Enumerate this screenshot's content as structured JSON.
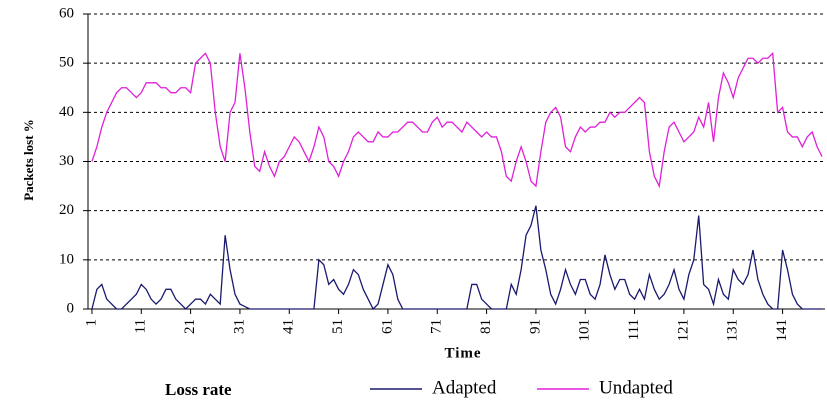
{
  "chart_data": {
    "type": "line",
    "y_label": "Packets lost %",
    "x_label": "Time",
    "legend_title": "Loss rate",
    "x": [
      1,
      2,
      3,
      4,
      5,
      6,
      7,
      8,
      9,
      10,
      11,
      12,
      13,
      14,
      15,
      16,
      17,
      18,
      19,
      20,
      21,
      22,
      23,
      24,
      25,
      26,
      27,
      28,
      29,
      30,
      31,
      32,
      33,
      34,
      35,
      36,
      37,
      38,
      39,
      40,
      41,
      42,
      43,
      44,
      45,
      46,
      47,
      48,
      49,
      50,
      51,
      52,
      53,
      54,
      55,
      56,
      57,
      58,
      59,
      60,
      61,
      62,
      63,
      64,
      65,
      66,
      67,
      68,
      69,
      70,
      71,
      72,
      73,
      74,
      75,
      76,
      77,
      78,
      79,
      80,
      81,
      82,
      83,
      84,
      85,
      86,
      87,
      88,
      89,
      90,
      91,
      92,
      93,
      94,
      95,
      96,
      97,
      98,
      99,
      100,
      101,
      102,
      103,
      104,
      105,
      106,
      107,
      108,
      109,
      110,
      111,
      112,
      113,
      114,
      115,
      116,
      117,
      118,
      119,
      120,
      121,
      122,
      123,
      124,
      125,
      126,
      127,
      128,
      129,
      130,
      131,
      132,
      133,
      134,
      135,
      136,
      137,
      138,
      139,
      140,
      141,
      142,
      143,
      144,
      145,
      146,
      147,
      148,
      149
    ],
    "series": [
      {
        "name": "Adapted",
        "color": "#1a1a6e",
        "values": [
          0,
          4,
          5,
          2,
          1,
          0,
          0,
          1,
          2,
          3,
          5,
          4,
          2,
          1,
          2,
          4,
          4,
          2,
          1,
          0,
          1,
          2,
          2,
          1,
          3,
          2,
          1,
          15,
          8,
          3,
          1,
          0.5,
          0,
          0,
          0,
          0,
          0,
          0,
          0,
          0,
          0,
          0,
          0,
          0,
          0,
          0,
          10,
          9,
          5,
          6,
          4,
          3,
          5,
          8,
          7,
          4,
          2,
          0,
          1,
          5,
          9,
          7,
          2,
          0,
          0,
          0,
          0,
          0,
          0,
          0,
          0,
          0,
          0,
          0,
          0,
          0,
          0,
          5,
          5,
          2,
          1,
          0,
          0,
          0,
          0,
          5,
          3,
          8,
          15,
          17,
          21,
          12,
          8,
          3,
          1,
          4,
          8,
          5,
          3,
          6,
          6,
          3,
          2,
          5,
          11,
          7,
          4,
          6,
          6,
          3,
          2,
          4,
          2,
          7,
          4,
          2,
          3,
          5,
          8,
          4,
          2,
          7,
          10,
          19,
          5,
          4,
          1,
          6,
          3,
          2,
          8,
          6,
          5,
          7,
          12,
          6,
          3,
          1,
          0,
          0,
          12,
          8,
          3,
          1,
          0,
          0,
          0,
          0,
          0
        ]
      },
      {
        "name": "Undapted",
        "color": "#e020d8",
        "values": [
          30,
          33,
          37,
          40,
          42,
          44,
          45,
          45,
          44,
          43,
          44,
          46,
          46,
          46,
          45,
          45,
          44,
          44,
          45,
          45,
          44,
          50,
          51,
          52,
          50,
          40,
          33,
          30,
          40,
          42,
          52,
          45,
          36,
          29,
          28,
          32,
          29,
          27,
          30,
          31,
          33,
          35,
          34,
          32,
          30,
          33,
          37,
          35,
          30,
          29,
          27,
          30,
          32,
          35,
          36,
          35,
          34,
          34,
          36,
          35,
          35,
          36,
          36,
          37,
          38,
          38,
          37,
          36,
          36,
          38,
          39,
          37,
          38,
          38,
          37,
          36,
          38,
          37,
          36,
          35,
          36,
          35,
          35,
          32,
          27,
          26,
          30,
          33,
          30,
          26,
          25,
          32,
          38,
          40,
          41,
          39,
          33,
          32,
          35,
          37,
          36,
          37,
          37,
          38,
          38,
          40,
          39,
          40,
          40,
          41,
          42,
          43,
          42,
          32,
          27,
          25,
          32,
          37,
          38,
          36,
          34,
          35,
          36,
          39,
          37,
          42,
          34,
          43,
          48,
          46,
          43,
          47,
          49,
          51,
          51,
          50,
          51,
          51,
          52,
          40,
          41,
          36,
          35,
          35,
          33,
          35,
          36,
          33,
          31
        ]
      }
    ],
    "xlim": [
      0.2,
      149.6
    ],
    "xticks": [
      1,
      11,
      21,
      31,
      41,
      51,
      61,
      71,
      81,
      91,
      101,
      111,
      121,
      131,
      141
    ],
    "ylim": [
      0,
      60
    ],
    "yticks": [
      0,
      10,
      20,
      30,
      40,
      50,
      60
    ],
    "grid": true
  }
}
